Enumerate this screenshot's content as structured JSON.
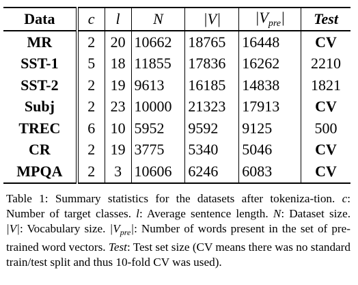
{
  "table": {
    "headers": {
      "data": "Data",
      "c": "c",
      "l": "l",
      "n": "N",
      "v": "|V|",
      "vpre_prefix": "|V",
      "vpre_sub": "pre",
      "vpre_suffix": "|",
      "test": "Test"
    },
    "rows": [
      {
        "data": "MR",
        "c": "2",
        "l": "20",
        "n": "10662",
        "v": "18765",
        "vpre": "16448",
        "test": "CV"
      },
      {
        "data": "SST-1",
        "c": "5",
        "l": "18",
        "n": "11855",
        "v": "17836",
        "vpre": "16262",
        "test": "2210"
      },
      {
        "data": "SST-2",
        "c": "2",
        "l": "19",
        "n": "9613",
        "v": "16185",
        "vpre": "14838",
        "test": "1821"
      },
      {
        "data": "Subj",
        "c": "2",
        "l": "23",
        "n": "10000",
        "v": "21323",
        "vpre": "17913",
        "test": "CV"
      },
      {
        "data": "TREC",
        "c": "6",
        "l": "10",
        "n": "5952",
        "v": "9592",
        "vpre": "9125",
        "test": "500"
      },
      {
        "data": "CR",
        "c": "2",
        "l": "19",
        "n": "3775",
        "v": "5340",
        "vpre": "5046",
        "test": "CV"
      },
      {
        "data": "MPQA",
        "c": "2",
        "l": "3",
        "n": "10606",
        "v": "6246",
        "vpre": "6083",
        "test": "CV"
      }
    ]
  },
  "caption": {
    "t1": "Table 1: Summary statistics for the datasets after tokeniza-tion. ",
    "c_sym": "c",
    "t2": ": Number of target classes. ",
    "l_sym": "l",
    "t3": ": Average sentence length. ",
    "n_sym": "N",
    "t4": ": Dataset size. ",
    "v_sym": "|V|",
    "t5": ": Vocabulary size. ",
    "vpre_prefix": "|V",
    "vpre_sub": "pre",
    "vpre_suffix": "|",
    "t6": ": Number of words present in the set of pre-trained word vectors. ",
    "test_sym": "Test",
    "t7": ": Test set size (CV means there was no standard train/test split and thus 10-fold CV was used)."
  }
}
